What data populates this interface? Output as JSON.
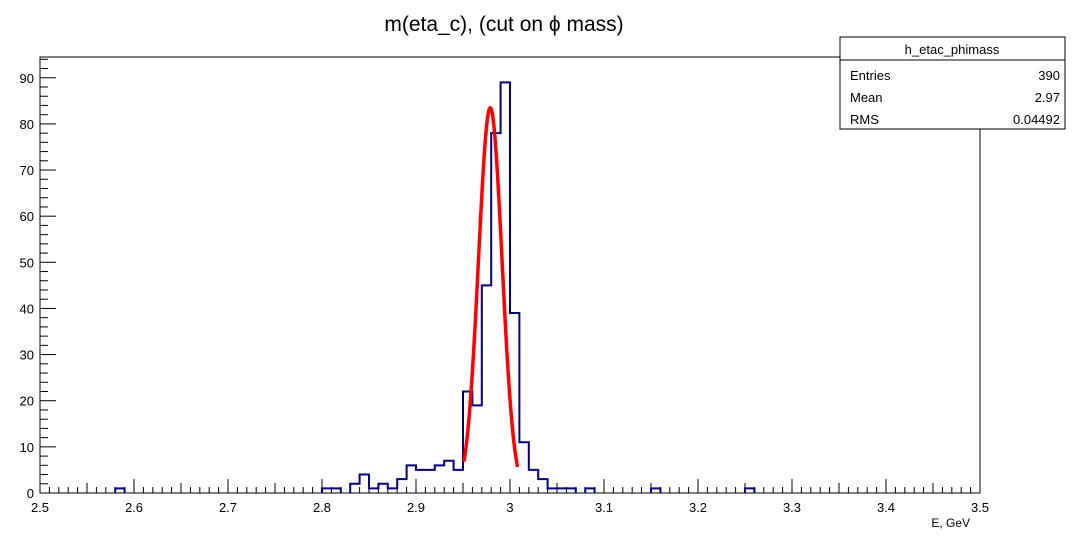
{
  "chart_data": {
    "type": "histogram",
    "title": "m(eta_c), (cut on ϕ mass)",
    "xlabel": "E, GeV",
    "ylabel": "",
    "xlim": [
      2.5,
      3.5
    ],
    "ylim": [
      0,
      94.5
    ],
    "bin_width": 0.01,
    "x_ticks": [
      2.5,
      2.6,
      2.7,
      2.8,
      2.9,
      3.0,
      3.1,
      3.2,
      3.3,
      3.4,
      3.5
    ],
    "x_tick_labels": [
      "2.5",
      "2.6",
      "2.7",
      "2.8",
      "2.9",
      "3",
      "3.1",
      "3.2",
      "3.3",
      "3.4",
      "3.5"
    ],
    "y_ticks": [
      0,
      10,
      20,
      30,
      40,
      50,
      60,
      70,
      80,
      90
    ],
    "y_tick_labels": [
      "0",
      "10",
      "20",
      "30",
      "40",
      "50",
      "60",
      "70",
      "80",
      "90"
    ],
    "histogram": {
      "color": "#000080",
      "bins": [
        {
          "low": 2.58,
          "count": 1
        },
        {
          "low": 2.8,
          "count": 1
        },
        {
          "low": 2.81,
          "count": 1
        },
        {
          "low": 2.83,
          "count": 2
        },
        {
          "low": 2.84,
          "count": 4
        },
        {
          "low": 2.85,
          "count": 1
        },
        {
          "low": 2.86,
          "count": 2
        },
        {
          "low": 2.87,
          "count": 1
        },
        {
          "low": 2.88,
          "count": 3
        },
        {
          "low": 2.89,
          "count": 6
        },
        {
          "low": 2.9,
          "count": 5
        },
        {
          "low": 2.91,
          "count": 5
        },
        {
          "low": 2.92,
          "count": 6
        },
        {
          "low": 2.93,
          "count": 7
        },
        {
          "low": 2.94,
          "count": 5
        },
        {
          "low": 2.95,
          "count": 22
        },
        {
          "low": 2.96,
          "count": 19
        },
        {
          "low": 2.97,
          "count": 45
        },
        {
          "low": 2.98,
          "count": 78
        },
        {
          "low": 2.99,
          "count": 89
        },
        {
          "low": 3.0,
          "count": 39
        },
        {
          "low": 3.01,
          "count": 11
        },
        {
          "low": 3.02,
          "count": 5
        },
        {
          "low": 3.03,
          "count": 3
        },
        {
          "low": 3.04,
          "count": 1
        },
        {
          "low": 3.05,
          "count": 1
        },
        {
          "low": 3.06,
          "count": 1
        },
        {
          "low": 3.08,
          "count": 1
        },
        {
          "low": 3.15,
          "count": 1
        },
        {
          "low": 3.25,
          "count": 1
        }
      ]
    },
    "fit": {
      "type": "gaussian",
      "color": "#ff0000",
      "amplitude": 83.5,
      "mean": 2.979,
      "sigma": 0.0125,
      "x_range": [
        2.951,
        3.008
      ]
    },
    "stats_box": {
      "name": "h_etac_phimass",
      "rows": [
        {
          "label": "Entries",
          "value": "390"
        },
        {
          "label": "Mean",
          "value": "2.97"
        },
        {
          "label": "RMS",
          "value": "0.04492"
        }
      ]
    },
    "grid": false,
    "legend": "none"
  }
}
